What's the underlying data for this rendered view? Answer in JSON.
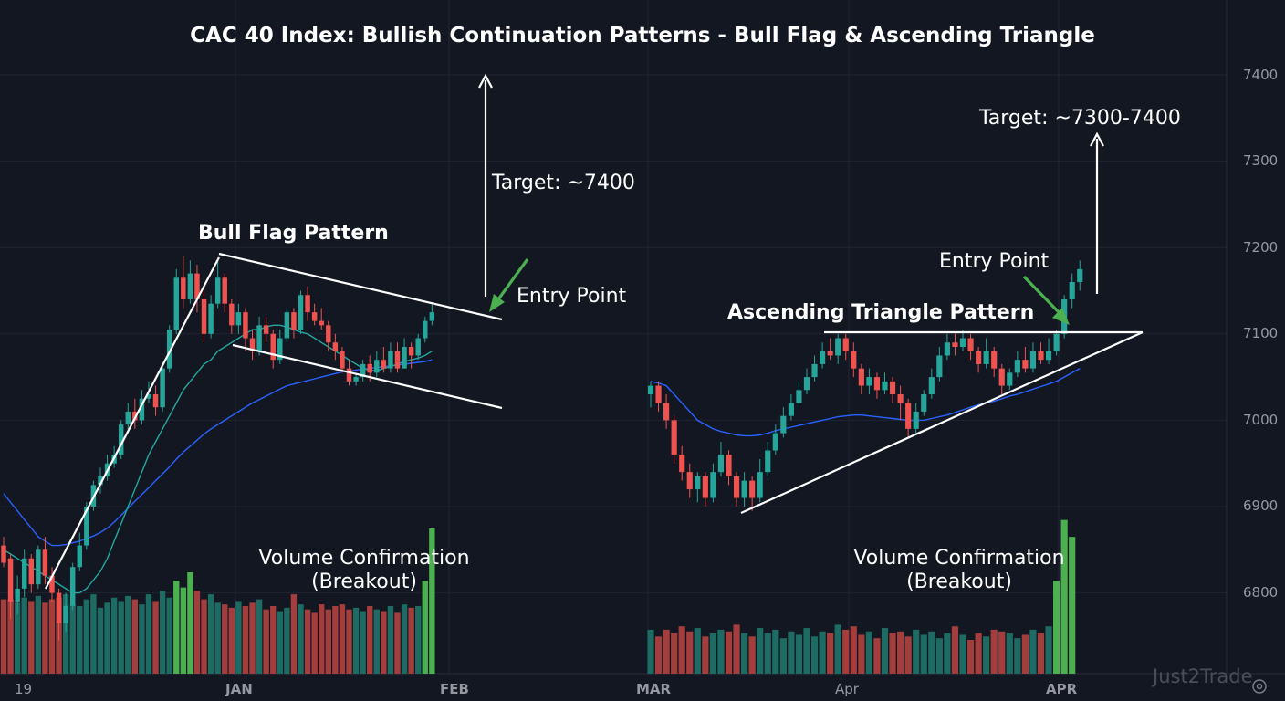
{
  "chart_data": {
    "type": "candlestick",
    "title": "CAC 40 Index: Bullish Continuation Patterns - Bull Flag & Ascending Triangle",
    "y_ticks": [
      6800,
      6900,
      7000,
      7100,
      7200,
      7300,
      7400
    ],
    "ylim": [
      6705,
      7490
    ],
    "x_ticks": [
      "19",
      "JAN",
      "FEB",
      "MAR",
      "Apr",
      "APR"
    ],
    "grid": true,
    "segments": [
      {
        "name": "bull-flag",
        "candles": [
          [
            6855,
            6835,
            6865,
            6830
          ],
          [
            6840,
            6790,
            6845,
            6770
          ],
          [
            6790,
            6805,
            6820,
            6775
          ],
          [
            6805,
            6840,
            6850,
            6795
          ],
          [
            6840,
            6810,
            6845,
            6800
          ],
          [
            6810,
            6850,
            6855,
            6805
          ],
          [
            6850,
            6820,
            6865,
            6810
          ],
          [
            6820,
            6800,
            6830,
            6790
          ],
          [
            6800,
            6765,
            6805,
            6745
          ],
          [
            6765,
            6785,
            6800,
            6755
          ],
          [
            6785,
            6830,
            6835,
            6780
          ],
          [
            6830,
            6855,
            6870,
            6825
          ],
          [
            6855,
            6900,
            6905,
            6850
          ],
          [
            6900,
            6925,
            6930,
            6895
          ],
          [
            6925,
            6935,
            6945,
            6915
          ],
          [
            6935,
            6950,
            6960,
            6930
          ],
          [
            6950,
            6960,
            6970,
            6945
          ],
          [
            6960,
            6995,
            7000,
            6955
          ],
          [
            6995,
            7010,
            7020,
            6985
          ],
          [
            7010,
            7000,
            7025,
            6990
          ],
          [
            7000,
            7025,
            7035,
            6995
          ],
          [
            7025,
            7030,
            7045,
            7020
          ],
          [
            7030,
            7015,
            7040,
            7005
          ],
          [
            7015,
            7060,
            7065,
            7010
          ],
          [
            7060,
            7105,
            7110,
            7055
          ],
          [
            7105,
            7165,
            7175,
            7100
          ],
          [
            7165,
            7140,
            7190,
            7130
          ],
          [
            7140,
            7170,
            7185,
            7135
          ],
          [
            7170,
            7140,
            7180,
            7125
          ],
          [
            7140,
            7100,
            7150,
            7090
          ],
          [
            7100,
            7135,
            7145,
            7095
          ],
          [
            7135,
            7165,
            7185,
            7130
          ],
          [
            7165,
            7135,
            7170,
            7125
          ],
          [
            7135,
            7110,
            7140,
            7100
          ],
          [
            7110,
            7125,
            7135,
            7100
          ],
          [
            7125,
            7095,
            7130,
            7080
          ],
          [
            7095,
            7080,
            7105,
            7070
          ],
          [
            7080,
            7110,
            7120,
            7075
          ],
          [
            7110,
            7100,
            7120,
            7090
          ],
          [
            7100,
            7070,
            7105,
            7060
          ],
          [
            7070,
            7095,
            7105,
            7065
          ],
          [
            7095,
            7125,
            7130,
            7090
          ],
          [
            7125,
            7105,
            7130,
            7095
          ],
          [
            7105,
            7145,
            7150,
            7100
          ],
          [
            7145,
            7125,
            7155,
            7115
          ],
          [
            7125,
            7115,
            7135,
            7110
          ],
          [
            7115,
            7110,
            7130,
            7105
          ],
          [
            7110,
            7090,
            7115,
            7080
          ],
          [
            7090,
            7080,
            7100,
            7070
          ],
          [
            7080,
            7060,
            7085,
            7055
          ],
          [
            7060,
            7045,
            7070,
            7040
          ],
          [
            7045,
            7050,
            7055,
            7040
          ],
          [
            7050,
            7065,
            7070,
            7045
          ],
          [
            7065,
            7055,
            7075,
            7045
          ],
          [
            7055,
            7070,
            7080,
            7050
          ],
          [
            7070,
            7060,
            7085,
            7055
          ],
          [
            7060,
            7080,
            7090,
            7055
          ],
          [
            7080,
            7060,
            7090,
            7055
          ],
          [
            7060,
            7085,
            7095,
            7060
          ],
          [
            7085,
            7075,
            7090,
            7060
          ],
          [
            7075,
            7095,
            7100,
            7070
          ],
          [
            7095,
            7115,
            7120,
            7090
          ],
          [
            7115,
            7125,
            7135,
            7110
          ]
        ],
        "ma_fast": [
          6850,
          6845,
          6840,
          6835,
          6830,
          6825,
          6820,
          6815,
          6810,
          6805,
          6800,
          6800,
          6805,
          6815,
          6825,
          6840,
          6860,
          6880,
          6900,
          6920,
          6940,
          6960,
          6975,
          6990,
          7005,
          7020,
          7035,
          7045,
          7055,
          7065,
          7070,
          7080,
          7085,
          7090,
          7095,
          7100,
          7105,
          7105,
          7108,
          7110,
          7110,
          7108,
          7105,
          7102,
          7100,
          7095,
          7090,
          7085,
          7080,
          7075,
          7070,
          7065,
          7060,
          7058,
          7057,
          7060,
          7062,
          7065,
          7068,
          7070,
          7072,
          7075,
          7080
        ],
        "ma_slow": [
          6915,
          6905,
          6895,
          6885,
          6875,
          6865,
          6860,
          6855,
          6855,
          6856,
          6858,
          6860,
          6863,
          6866,
          6870,
          6875,
          6882,
          6890,
          6898,
          6906,
          6914,
          6922,
          6930,
          6938,
          6946,
          6955,
          6963,
          6970,
          6977,
          6984,
          6990,
          6995,
          7000,
          7005,
          7010,
          7015,
          7020,
          7024,
          7028,
          7032,
          7036,
          7040,
          7042,
          7044,
          7046,
          7048,
          7050,
          7052,
          7054,
          7056,
          7057,
          7058,
          7059,
          7060,
          7061,
          7062,
          7063,
          7064,
          7065,
          7066,
          7067,
          7068,
          7070
        ],
        "volume_relative": [
          0.44,
          0.44,
          0.42,
          0.45,
          0.43,
          0.46,
          0.42,
          0.44,
          0.45,
          0.47,
          0.41,
          0.4,
          0.44,
          0.47,
          0.39,
          0.42,
          0.45,
          0.43,
          0.46,
          0.44,
          0.41,
          0.47,
          0.43,
          0.49,
          0.45,
          0.55,
          0.51,
          0.6,
          0.49,
          0.44,
          0.47,
          0.42,
          0.41,
          0.39,
          0.43,
          0.4,
          0.42,
          0.44,
          0.38,
          0.4,
          0.37,
          0.39,
          0.47,
          0.41,
          0.38,
          0.36,
          0.41,
          0.38,
          0.4,
          0.41,
          0.38,
          0.39,
          0.37,
          0.4,
          0.38,
          0.37,
          0.4,
          0.36,
          0.41,
          0.39,
          0.4,
          0.55,
          0.86
        ]
      },
      {
        "name": "ascending-triangle",
        "candles": [
          [
            7030,
            7040,
            7045,
            7015
          ],
          [
            7040,
            7020,
            7045,
            7010
          ],
          [
            7020,
            7000,
            7030,
            6990
          ],
          [
            7000,
            6960,
            7005,
            6950
          ],
          [
            6960,
            6940,
            6970,
            6930
          ],
          [
            6940,
            6920,
            6950,
            6910
          ],
          [
            6920,
            6935,
            6940,
            6905
          ],
          [
            6935,
            6910,
            6940,
            6900
          ],
          [
            6910,
            6940,
            6950,
            6905
          ],
          [
            6940,
            6960,
            6975,
            6935
          ],
          [
            6960,
            6935,
            6965,
            6925
          ],
          [
            6935,
            6910,
            6940,
            6900
          ],
          [
            6910,
            6930,
            6940,
            6900
          ],
          [
            6930,
            6910,
            6935,
            6895
          ],
          [
            6910,
            6940,
            6955,
            6905
          ],
          [
            6940,
            6965,
            6975,
            6935
          ],
          [
            6965,
            6985,
            6995,
            6960
          ],
          [
            6985,
            7005,
            7015,
            6980
          ],
          [
            7005,
            7020,
            7030,
            7000
          ],
          [
            7020,
            7035,
            7045,
            7015
          ],
          [
            7035,
            7050,
            7060,
            7030
          ],
          [
            7050,
            7065,
            7075,
            7045
          ],
          [
            7065,
            7080,
            7090,
            7060
          ],
          [
            7080,
            7075,
            7095,
            7070
          ],
          [
            7075,
            7095,
            7100,
            7065
          ],
          [
            7095,
            7080,
            7100,
            7070
          ],
          [
            7080,
            7060,
            7090,
            7050
          ],
          [
            7060,
            7040,
            7065,
            7030
          ],
          [
            7040,
            7050,
            7060,
            7030
          ],
          [
            7050,
            7035,
            7055,
            7025
          ],
          [
            7035,
            7045,
            7055,
            7030
          ],
          [
            7045,
            7030,
            7050,
            7020
          ],
          [
            7030,
            7020,
            7040,
            7000
          ],
          [
            7020,
            6990,
            7025,
            6980
          ],
          [
            6990,
            7010,
            7020,
            6985
          ],
          [
            7010,
            7030,
            7035,
            7005
          ],
          [
            7030,
            7050,
            7060,
            7025
          ],
          [
            7050,
            7075,
            7085,
            7045
          ],
          [
            7075,
            7090,
            7100,
            7070
          ],
          [
            7090,
            7085,
            7100,
            7075
          ],
          [
            7085,
            7095,
            7105,
            7080
          ],
          [
            7095,
            7080,
            7100,
            7070
          ],
          [
            7080,
            7065,
            7085,
            7055
          ],
          [
            7065,
            7080,
            7095,
            7060
          ],
          [
            7080,
            7060,
            7085,
            7050
          ],
          [
            7060,
            7040,
            7065,
            7030
          ],
          [
            7040,
            7055,
            7060,
            7035
          ],
          [
            7055,
            7070,
            7080,
            7050
          ],
          [
            7070,
            7060,
            7085,
            7055
          ],
          [
            7060,
            7080,
            7090,
            7055
          ],
          [
            7080,
            7070,
            7090,
            7065
          ],
          [
            7070,
            7080,
            7095,
            7065
          ],
          [
            7080,
            7100,
            7105,
            7075
          ],
          [
            7100,
            7140,
            7145,
            7095
          ],
          [
            7140,
            7160,
            7170,
            7130
          ],
          [
            7160,
            7175,
            7185,
            7150
          ]
        ],
        "ma_fast": [
          7045,
          7043,
          7040,
          7030,
          7020,
          7010,
          7000,
          6995,
          6990,
          6987,
          6985,
          6983,
          6982,
          6982,
          6983,
          6985,
          6988,
          6990,
          6992,
          6994,
          6996,
          6998,
          7000,
          7002,
          7004,
          7005,
          7006,
          7006,
          7005,
          7004,
          7003,
          7002,
          7001,
          7000,
          7000,
          7000,
          7002,
          7004,
          7006,
          7009,
          7012,
          7015,
          7018,
          7020,
          7022,
          7025,
          7028,
          7030,
          7033,
          7036,
          7039,
          7042,
          7045,
          7050,
          7055,
          7060
        ],
        "volume_relative": [
          0.26,
          0.22,
          0.26,
          0.24,
          0.28,
          0.25,
          0.27,
          0.22,
          0.24,
          0.26,
          0.25,
          0.29,
          0.24,
          0.22,
          0.27,
          0.24,
          0.26,
          0.21,
          0.25,
          0.23,
          0.27,
          0.22,
          0.25,
          0.24,
          0.29,
          0.26,
          0.28,
          0.23,
          0.25,
          0.21,
          0.27,
          0.24,
          0.25,
          0.22,
          0.26,
          0.23,
          0.25,
          0.21,
          0.24,
          0.28,
          0.23,
          0.2,
          0.24,
          0.22,
          0.26,
          0.25,
          0.24,
          0.21,
          0.23,
          0.26,
          0.24,
          0.28,
          0.55,
          0.91,
          0.81,
          0.0
        ]
      }
    ]
  },
  "annotations": {
    "bull_flag_label": "Bull Flag Pattern",
    "target_1": "Target: ~7400",
    "entry_1": "Entry Point",
    "volume_1_line1": "Volume Confirmation",
    "volume_1_line2": "(Breakout)",
    "triangle_label": "Ascending Triangle Pattern",
    "target_2": "Target: ~7300-7400",
    "entry_2": "Entry Point",
    "volume_2_line1": "Volume Confirmation",
    "volume_2_line2": "(Breakout)"
  },
  "watermark": "Just2Trade",
  "colors": {
    "background": "#131722",
    "up": "#26a69a",
    "down": "#ef5350",
    "volume_up": "#1d6b63",
    "volume_down": "#a33e3c",
    "volume_breakout": "#4caf50",
    "ma_fast": "#22a8a0",
    "ma_slow": "#2962ff",
    "grid": "#212533",
    "axis_text": "#9598a1",
    "annotation": "#ffffff",
    "entry_arrow": "#4caf50"
  },
  "icons": {
    "settings": "settings-icon"
  }
}
